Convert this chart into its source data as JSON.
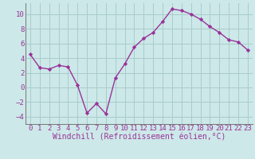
{
  "x": [
    0,
    1,
    2,
    3,
    4,
    5,
    6,
    7,
    8,
    9,
    10,
    11,
    12,
    13,
    14,
    15,
    16,
    17,
    18,
    19,
    20,
    21,
    22,
    23
  ],
  "y": [
    4.5,
    2.7,
    2.5,
    3.0,
    2.8,
    0.3,
    -3.5,
    -2.2,
    -3.6,
    1.3,
    3.2,
    5.5,
    6.7,
    7.5,
    9.0,
    10.7,
    10.5,
    10.0,
    9.3,
    8.3,
    7.5,
    6.5,
    6.2,
    5.1
  ],
  "line_color": "#993399",
  "marker": "D",
  "marker_size": 2.2,
  "bg_color": "#cce8e8",
  "grid_color": "#aacccc",
  "tick_color": "#993399",
  "xlabel": "Windchill (Refroidissement éolien,°C)",
  "xlim": [
    -0.5,
    23.5
  ],
  "ylim": [
    -5,
    11.5
  ],
  "yticks": [
    -4,
    -2,
    0,
    2,
    4,
    6,
    8,
    10
  ],
  "xticks": [
    0,
    1,
    2,
    3,
    4,
    5,
    6,
    7,
    8,
    9,
    10,
    11,
    12,
    13,
    14,
    15,
    16,
    17,
    18,
    19,
    20,
    21,
    22,
    23
  ],
  "font_size": 6.5,
  "xlabel_fontsize": 7.0,
  "lw": 1.0
}
